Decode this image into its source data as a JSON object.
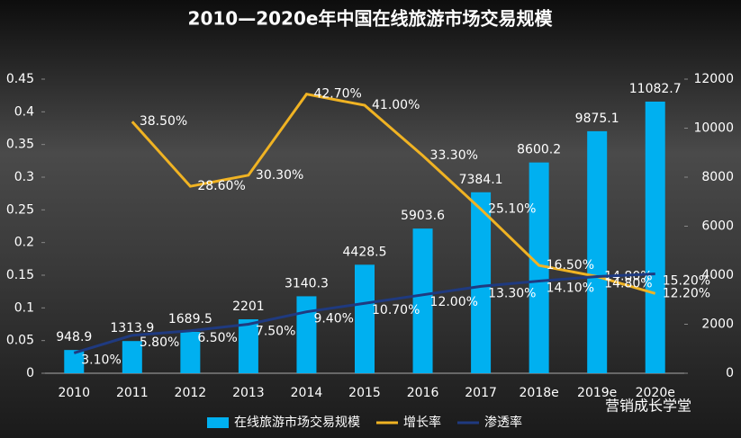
{
  "chart_data": {
    "type": "bar-line",
    "title": "2010—2020e年中国在线旅游市场交易规模",
    "categories": [
      "2010",
      "2011",
      "2012",
      "2013",
      "2014",
      "2015",
      "2016",
      "2017",
      "2018e",
      "2019e",
      "2020e"
    ],
    "series": [
      {
        "name": "在线旅游市场交易规模",
        "type": "bar",
        "axis": "y2",
        "color": "#00b0f0",
        "values": [
          948.9,
          1313.9,
          1689.5,
          2201,
          3140.3,
          4428.5,
          5903.6,
          7384.1,
          8600.2,
          9875.1,
          11082.7
        ]
      },
      {
        "name": "增长率",
        "type": "line",
        "color": "#f0b323",
        "values": [
          null,
          0.385,
          0.286,
          0.303,
          0.427,
          0.41,
          0.333,
          0.251,
          0.165,
          0.148,
          0.122
        ],
        "value_labels": [
          null,
          "38.50%",
          "28.60%",
          "30.30%",
          "42.70%",
          "41.00%",
          "33.30%",
          "25.10%",
          "16.50%",
          "14.80%",
          "12.20%"
        ]
      },
      {
        "name": "渗透率",
        "type": "line",
        "color": "#1f3a80",
        "values": [
          0.031,
          0.058,
          0.065,
          0.075,
          0.094,
          0.107,
          0.12,
          0.133,
          0.141,
          0.148,
          0.152
        ],
        "value_labels": [
          "3.10%",
          "5.80%",
          "6.50%",
          "7.50%",
          "9.40%",
          "10.70%",
          "12.00%",
          "13.30%",
          "14.10%",
          "14.80%",
          "15.20%"
        ]
      }
    ],
    "ylim": [
      0,
      0.45
    ],
    "yticks": [
      0,
      0.05,
      0.1,
      0.15,
      0.2,
      0.25,
      0.3,
      0.35,
      0.4,
      0.45
    ],
    "y2lim": [
      0,
      12000
    ],
    "y2ticks": [
      0,
      2000,
      4000,
      6000,
      8000,
      10000,
      12000
    ],
    "legend": "bottom",
    "watermark": "营销成长学堂"
  }
}
